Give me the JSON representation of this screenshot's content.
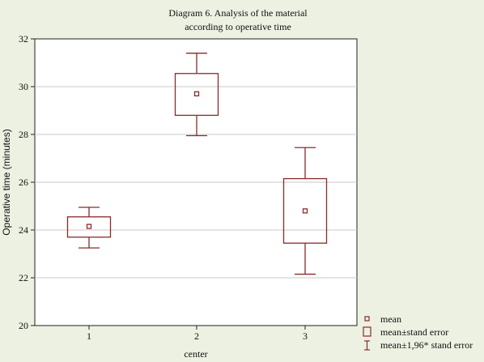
{
  "chart_data": {
    "type": "box",
    "title_lines": [
      "Diagram 6. Analysis of the material",
      "according to operative time"
    ],
    "xlabel": "center",
    "ylabel": "Operative time (minutes)",
    "ylim": [
      20,
      32
    ],
    "yticks": [
      20,
      22,
      24,
      26,
      28,
      30,
      32
    ],
    "grid": true,
    "categories": [
      "1",
      "2",
      "3"
    ],
    "series": [
      {
        "category": "1",
        "mean": 24.15,
        "se_low": 23.7,
        "se_high": 24.55,
        "ci_low": 23.25,
        "ci_high": 24.95
      },
      {
        "category": "2",
        "mean": 29.7,
        "se_low": 28.8,
        "se_high": 30.55,
        "ci_low": 27.95,
        "ci_high": 31.4
      },
      {
        "category": "3",
        "mean": 24.8,
        "se_low": 23.45,
        "se_high": 26.15,
        "ci_low": 22.15,
        "ci_high": 27.45
      }
    ],
    "legend": {
      "placement": "bottom-right",
      "items": [
        {
          "symbol": "mean-marker",
          "label": "mean"
        },
        {
          "symbol": "se-box",
          "label": "mean±stand error"
        },
        {
          "symbol": "ci-whisker",
          "label": "mean±1,96* stand error"
        }
      ]
    },
    "colors": {
      "series": "#8b2a2a",
      "background": "#ecf1e2",
      "plot_area": "#ffffff",
      "grid": "#c8c8c8"
    }
  }
}
